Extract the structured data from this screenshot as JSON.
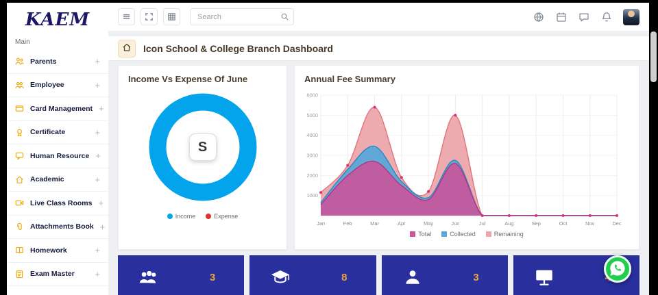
{
  "brand": {
    "logo": "KAEM"
  },
  "sidebar": {
    "section_label": "Main",
    "items": [
      {
        "label": "Parents",
        "icon": "parents-icon",
        "expand": "+"
      },
      {
        "label": "Employee",
        "icon": "employee-icon",
        "expand": "+"
      },
      {
        "label": "Card Management",
        "icon": "card-management-icon",
        "expand": "+"
      },
      {
        "label": "Certificate",
        "icon": "certificate-icon",
        "expand": "+"
      },
      {
        "label": "Human Resource",
        "icon": "human-resource-icon",
        "expand": "+"
      },
      {
        "label": "Academic",
        "icon": "academic-icon",
        "expand": "+"
      },
      {
        "label": "Live Class Rooms",
        "icon": "live-class-rooms-icon",
        "expand": "+"
      },
      {
        "label": "Attachments Book",
        "icon": "attachments-book-icon",
        "expand": "+"
      },
      {
        "label": "Homework",
        "icon": "homework-icon",
        "expand": "+"
      },
      {
        "label": "Exam Master",
        "icon": "exam-master-icon",
        "expand": "+"
      }
    ]
  },
  "topbar": {
    "left_buttons": [
      "menu-icon",
      "fullscreen-icon",
      "apps-icon"
    ],
    "search": {
      "placeholder": "Search",
      "icon": "search-icon"
    },
    "right_icons": [
      "globe-icon",
      "calendar-icon",
      "chat-icon",
      "bell-icon"
    ],
    "avatar": "user-avatar"
  },
  "breadcrumb": {
    "home_icon": "home-icon",
    "title": "Icon School & College Branch Dashboard"
  },
  "cards": {
    "donut": {
      "title": "Income Vs Expense Of June",
      "center_glyph": "S"
    },
    "fees": {
      "title": "Annual Fee Summary"
    }
  },
  "chart_data": [
    {
      "type": "pie",
      "variant": "donut",
      "title": "Income Vs Expense Of June",
      "labels": [
        "Income",
        "Expense"
      ],
      "values": [
        100,
        0
      ],
      "colors": [
        "#03a4eb",
        "#e03131"
      ],
      "legend_position": "bottom",
      "center_label": "S"
    },
    {
      "type": "area",
      "title": "Annual Fee Summary",
      "x": [
        "Jan",
        "Feb",
        "Mar",
        "Apr",
        "May",
        "Jun",
        "Jul",
        "Aug",
        "Sep",
        "Oct",
        "Nov",
        "Dec"
      ],
      "ylim": [
        0,
        6000
      ],
      "yticks": [
        1000,
        2000,
        3000,
        4000,
        5000,
        6000
      ],
      "grid": true,
      "legend_position": "bottom",
      "series": [
        {
          "name": "Total",
          "fill": "#c9569b",
          "line": "#a83a87",
          "values": [
            550,
            2000,
            2700,
            1500,
            800,
            2600,
            0,
            0,
            0,
            0,
            0,
            0
          ]
        },
        {
          "name": "Collected",
          "fill": "#58a8d8",
          "line": "#2e86c1",
          "values": [
            650,
            2300,
            3450,
            1700,
            900,
            2750,
            0,
            0,
            0,
            0,
            0,
            0
          ]
        },
        {
          "name": "Remaining",
          "fill": "#eda6ab",
          "line": "#e2737b",
          "values": [
            1150,
            2500,
            5400,
            1900,
            1200,
            5000,
            0,
            0,
            0,
            0,
            0,
            0
          ]
        }
      ],
      "marker_series": "Remaining",
      "marker_color": "#d6336c"
    }
  ],
  "stats": [
    {
      "icon": "users-icon",
      "value": "3"
    },
    {
      "icon": "graduate-icon",
      "value": "8"
    },
    {
      "icon": "person-icon",
      "value": "3"
    },
    {
      "icon": "screen-icon",
      "value": "4"
    }
  ],
  "floating": {
    "whatsapp_icon": "whatsapp-icon"
  },
  "colors": {
    "accent_blue": "#03a4eb",
    "tile_bg": "#2a2f9e",
    "number_orange": "#f2a33c",
    "icon_orange": "#f0a500",
    "whatsapp_green": "#23ce4f"
  }
}
